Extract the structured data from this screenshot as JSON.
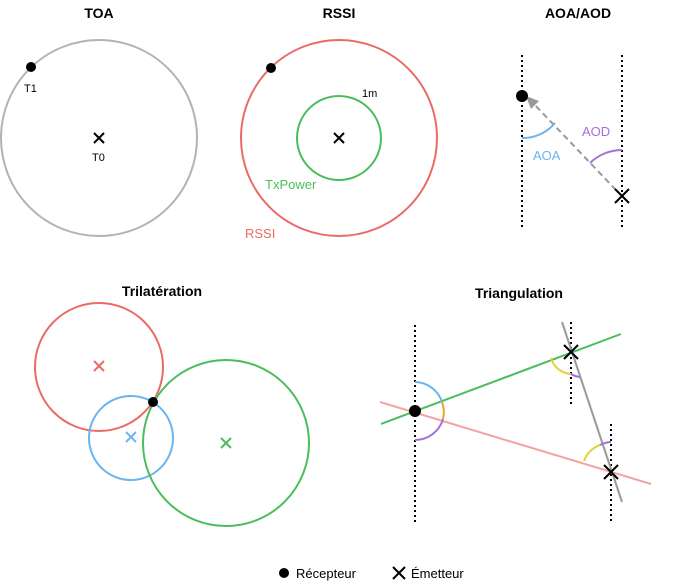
{
  "panels": {
    "toa": {
      "title": "TOA",
      "t1": "T1",
      "t0": "T0"
    },
    "rssi": {
      "title": "RSSI",
      "ref_distance": "1m",
      "txpower": "TxPower",
      "rssi_label": "RSSI"
    },
    "aoa_aod": {
      "title": "AOA/AOD",
      "aoa": "AOA",
      "aod": "AOD"
    },
    "trilateration": {
      "title": "Trilatération"
    },
    "triangulation": {
      "title": "Triangulation"
    }
  },
  "legend": {
    "receiver": "Récepteur",
    "emitter": "Émetteur"
  },
  "colors": {
    "gray": "#b3b3b3",
    "red": "#ea6b66",
    "green": "#4cbd5b",
    "blue": "#6ab4f0",
    "purple": "#a66fd8",
    "yellow": "#e3d13c",
    "orange": "#f0a030",
    "pink": "#f4a3a3",
    "dashed_gray": "#999999"
  },
  "icons": {
    "receiver": "filled-circle-icon",
    "emitter": "cross-icon"
  }
}
